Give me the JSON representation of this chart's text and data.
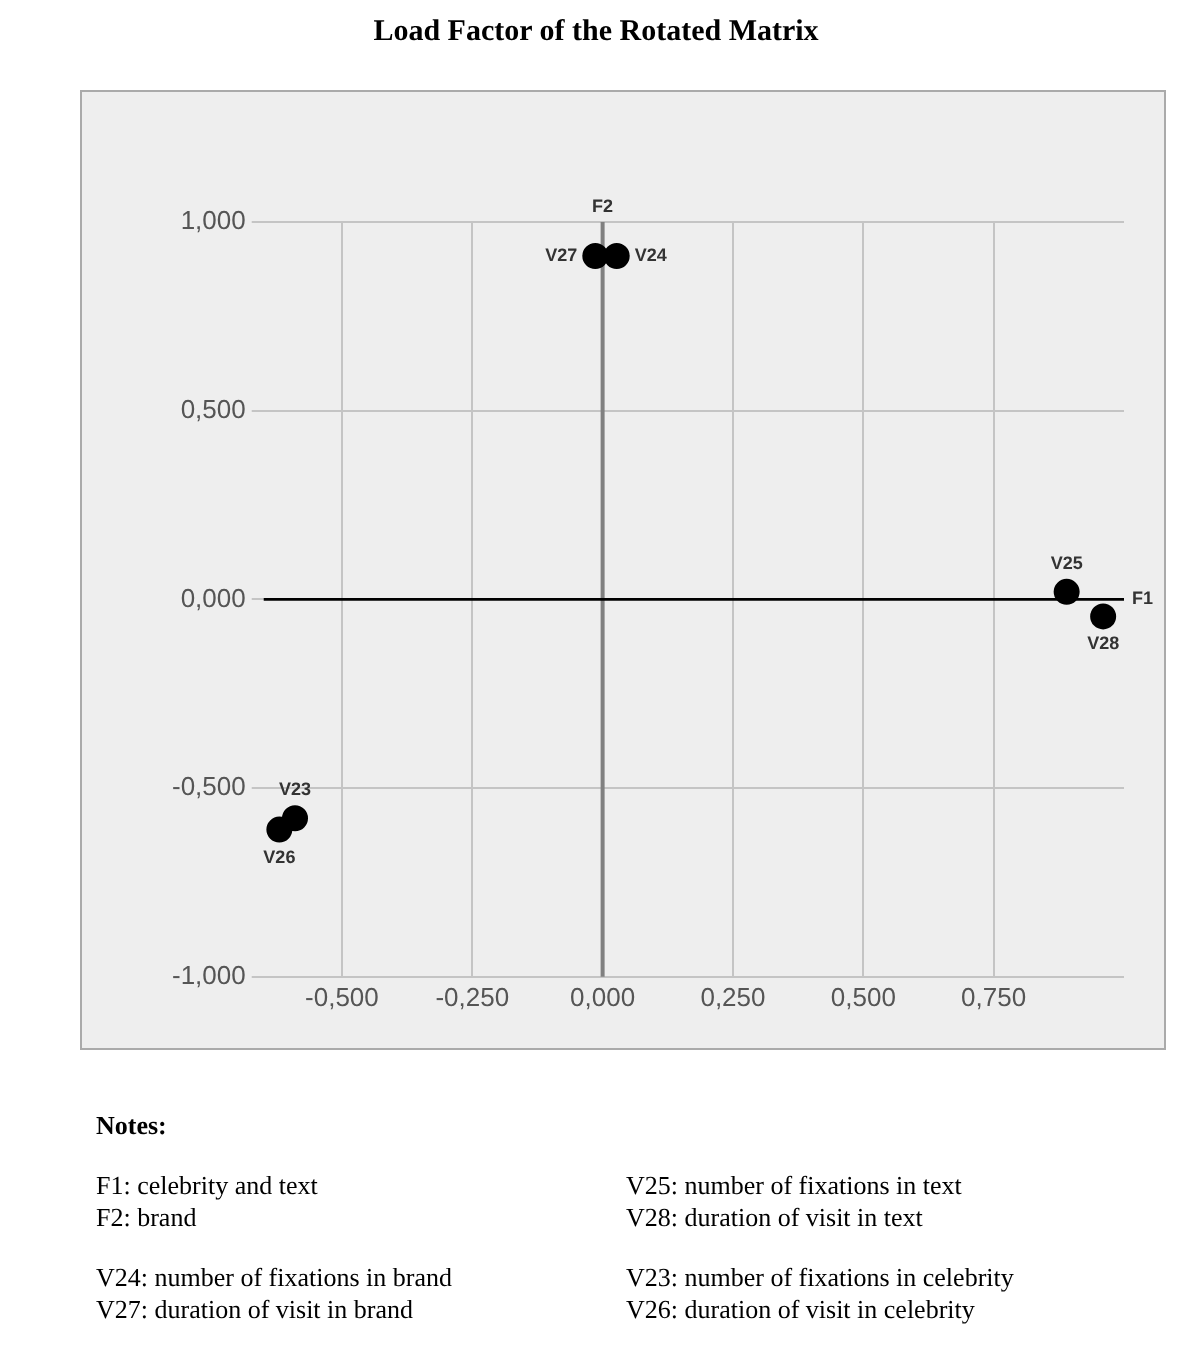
{
  "chart_data": {
    "type": "scatter",
    "title": "Load Factor of the Rotated Matrix",
    "xlabel": "F1",
    "ylabel": "F2",
    "x": [
      -0.014,
      0.027,
      0.89,
      0.96,
      -0.59,
      -0.62
    ],
    "series": [
      {
        "color": "#000000",
        "values": [
          0.91,
          0.91,
          0.02,
          -0.045,
          -0.58,
          -0.61
        ]
      }
    ],
    "marker": "circle",
    "grid": true,
    "legend": false,
    "xlim": [
      -0.65,
      1.0
    ],
    "xticks": [
      {
        "value": -0.5,
        "label": "-0,500"
      },
      {
        "value": -0.25,
        "label": "-0,250"
      },
      {
        "value": 0,
        "label": "0,000"
      },
      {
        "value": 0.25,
        "label": "0,250"
      },
      {
        "value": 0.5,
        "label": "0,500"
      },
      {
        "value": 0.75,
        "label": "0,750"
      }
    ],
    "ylim": [
      -1,
      1
    ],
    "yticks": [
      {
        "value": -1,
        "label": "-1,000"
      },
      {
        "value": -0.5,
        "label": "-0,500"
      },
      {
        "value": 0,
        "label": "0,000"
      },
      {
        "value": 0.5,
        "label": "0,500"
      },
      {
        "value": 1,
        "label": "1,000"
      }
    ],
    "ref_lines": [
      {
        "axis": "x",
        "value": 0,
        "color": "#808080"
      },
      {
        "axis": "y",
        "value": 0,
        "color": "#000000"
      }
    ],
    "annotations": [
      {
        "text": "V27",
        "x": -0.014,
        "y": 0.91
      },
      {
        "text": "V24",
        "x": 0.027,
        "y": 0.91
      },
      {
        "text": "V25",
        "x": 0.89,
        "y": 0.02
      },
      {
        "text": "V28",
        "x": 0.96,
        "y": -0.045
      },
      {
        "text": "V23",
        "x": -0.59,
        "y": -0.58
      },
      {
        "text": "V26",
        "x": -0.62,
        "y": -0.61
      },
      "Notes:",
      "F1: celebrity and text",
      "F2: brand",
      "V25: number of fixations in text",
      "V28: duration of visit in text",
      "V24: number of fixations in brand",
      "V27: duration of visit in brand",
      "V23: number of fixations in celebrity",
      "V26: duration of visit in celebrity"
    ]
  }
}
